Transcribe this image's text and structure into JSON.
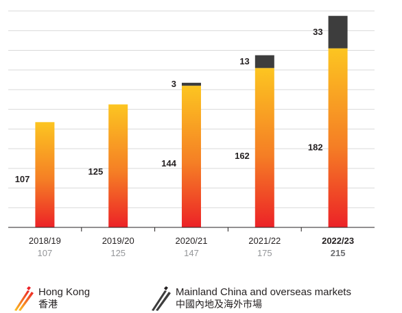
{
  "chart_data": {
    "type": "bar",
    "stacked": true,
    "categories": [
      "2018/19",
      "2019/20",
      "2020/21",
      "2021/22",
      "2022/23"
    ],
    "category_totals": [
      "107",
      "125",
      "147",
      "175",
      "215"
    ],
    "highlight_category": "2022/23",
    "series": [
      {
        "name": "Hong Kong",
        "name_zh": "香港",
        "values": [
          107,
          125,
          144,
          162,
          182
        ],
        "color_top": "#fcc521",
        "color_bottom": "#ec2227"
      },
      {
        "name": "Mainland China and overseas markets",
        "name_zh": "中國內地及海外市場",
        "values": [
          0,
          0,
          3,
          13,
          33
        ],
        "color": "#3d3d3d"
      }
    ],
    "ylim": [
      0,
      220
    ],
    "grid": true,
    "legend_position": "bottom"
  }
}
